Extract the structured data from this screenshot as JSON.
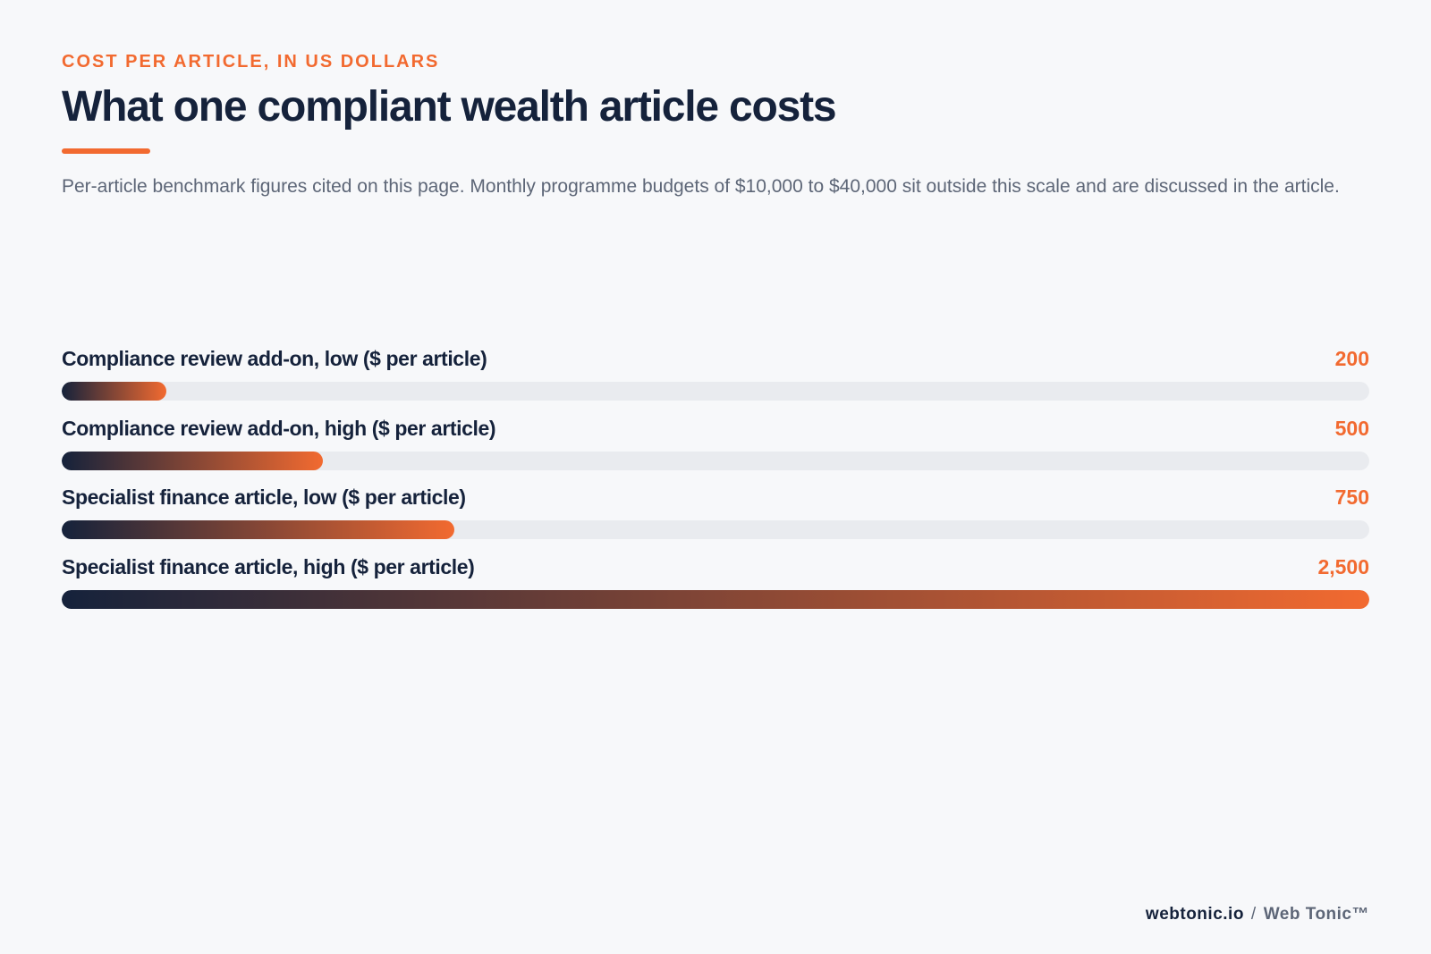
{
  "header": {
    "kicker": "COST PER ARTICLE, IN US DOLLARS",
    "title": "What one compliant wealth article costs",
    "subtitle": "Per-article benchmark figures cited on this page. Monthly programme budgets of $10,000 to $40,000 sit outside this scale and are discussed in the article."
  },
  "chart_data": {
    "type": "bar",
    "orientation": "horizontal",
    "categories": [
      "Compliance review add-on, low ($ per article)",
      "Compliance review add-on, high ($ per article)",
      "Specialist finance article, low ($ per article)",
      "Specialist finance article, high ($ per article)"
    ],
    "values": [
      200,
      500,
      750,
      2500
    ],
    "value_labels": [
      "200",
      "500",
      "750",
      "2,500"
    ],
    "xlim": [
      0,
      2500
    ],
    "grid": false,
    "legend": "none"
  },
  "colors": {
    "accent": "#f26a30",
    "navy": "#15223b",
    "track": "#e9ebef"
  },
  "footer": {
    "site": "webtonic.io",
    "separator": "/",
    "brand": "Web Tonic™"
  }
}
